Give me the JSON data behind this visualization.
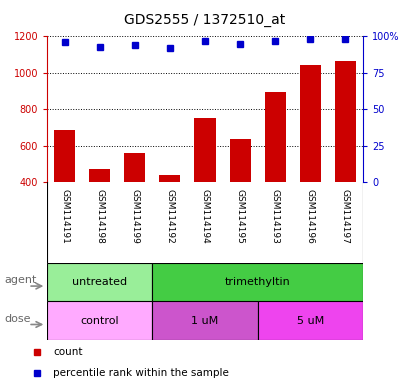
{
  "title": "GDS2555 / 1372510_at",
  "samples": [
    "GSM114191",
    "GSM114198",
    "GSM114199",
    "GSM114192",
    "GSM114194",
    "GSM114195",
    "GSM114193",
    "GSM114196",
    "GSM114197"
  ],
  "counts": [
    690,
    475,
    560,
    440,
    755,
    640,
    895,
    1045,
    1065
  ],
  "percentile_pct": [
    96,
    93,
    94,
    92,
    97,
    95,
    97,
    98,
    98
  ],
  "bar_color": "#cc0000",
  "dot_color": "#0000cc",
  "ylim_left": [
    400,
    1200
  ],
  "ylim_right": [
    0,
    100
  ],
  "yticks_left": [
    400,
    600,
    800,
    1000,
    1200
  ],
  "yticks_right": [
    0,
    25,
    50,
    75,
    100
  ],
  "agent_groups": [
    {
      "label": "untreated",
      "start": 0,
      "end": 3,
      "color": "#99ee99"
    },
    {
      "label": "trimethyltin",
      "start": 3,
      "end": 9,
      "color": "#44cc44"
    }
  ],
  "dose_groups": [
    {
      "label": "control",
      "start": 0,
      "end": 3,
      "color": "#ffaaff"
    },
    {
      "label": "1 uM",
      "start": 3,
      "end": 6,
      "color": "#dd55dd"
    },
    {
      "label": "5 uM",
      "start": 6,
      "end": 9,
      "color": "#dd55dd"
    }
  ],
  "legend_count_color": "#cc0000",
  "legend_dot_color": "#0000cc",
  "bg_color": "#ffffff",
  "label_row_bg": "#cccccc",
  "label_row_sep": "#aaaaaa"
}
